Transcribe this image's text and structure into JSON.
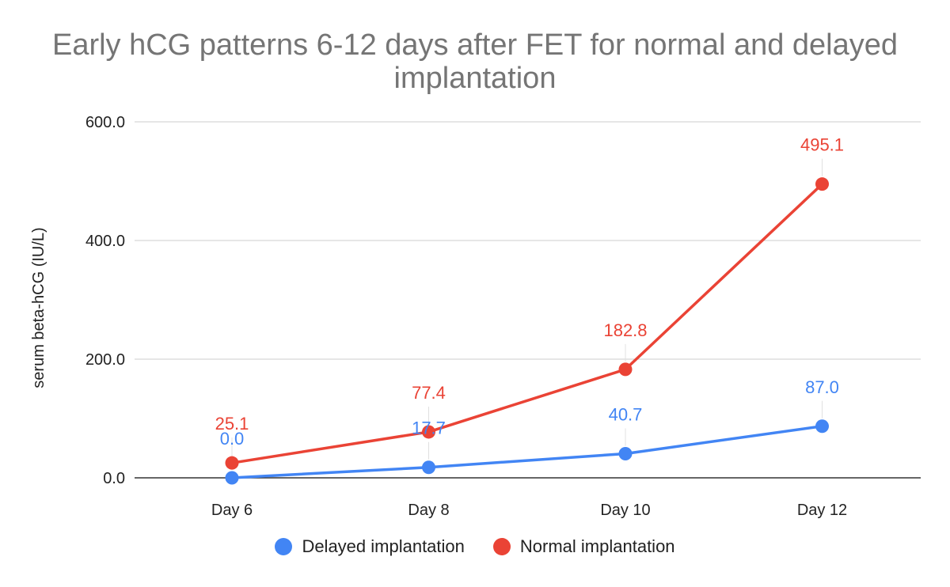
{
  "chart_data": {
    "type": "line",
    "title": "Early hCG patterns 6-12 days after FET for normal and delayed implantation",
    "xlabel": "",
    "ylabel": "serum beta-hCG (IU/L)",
    "categories": [
      "Day 6",
      "Day 8",
      "Day 10",
      "Day 12"
    ],
    "ylim": [
      0,
      600
    ],
    "yticks": [
      "0.0",
      "200.0",
      "400.0",
      "600.0"
    ],
    "ytick_values": [
      0,
      200,
      400,
      600
    ],
    "grid": true,
    "legend_position": "bottom",
    "series": [
      {
        "name": "Delayed implantation",
        "color": "#4285F4",
        "values": [
          0.0,
          17.7,
          40.7,
          87.0
        ],
        "labels": [
          "0.0",
          "17.7",
          "40.7",
          "87.0"
        ]
      },
      {
        "name": "Normal implantation",
        "color": "#EA4335",
        "values": [
          25.1,
          77.4,
          182.8,
          495.1
        ],
        "labels": [
          "25.1",
          "77.4",
          "182.8",
          "495.1"
        ]
      }
    ]
  }
}
